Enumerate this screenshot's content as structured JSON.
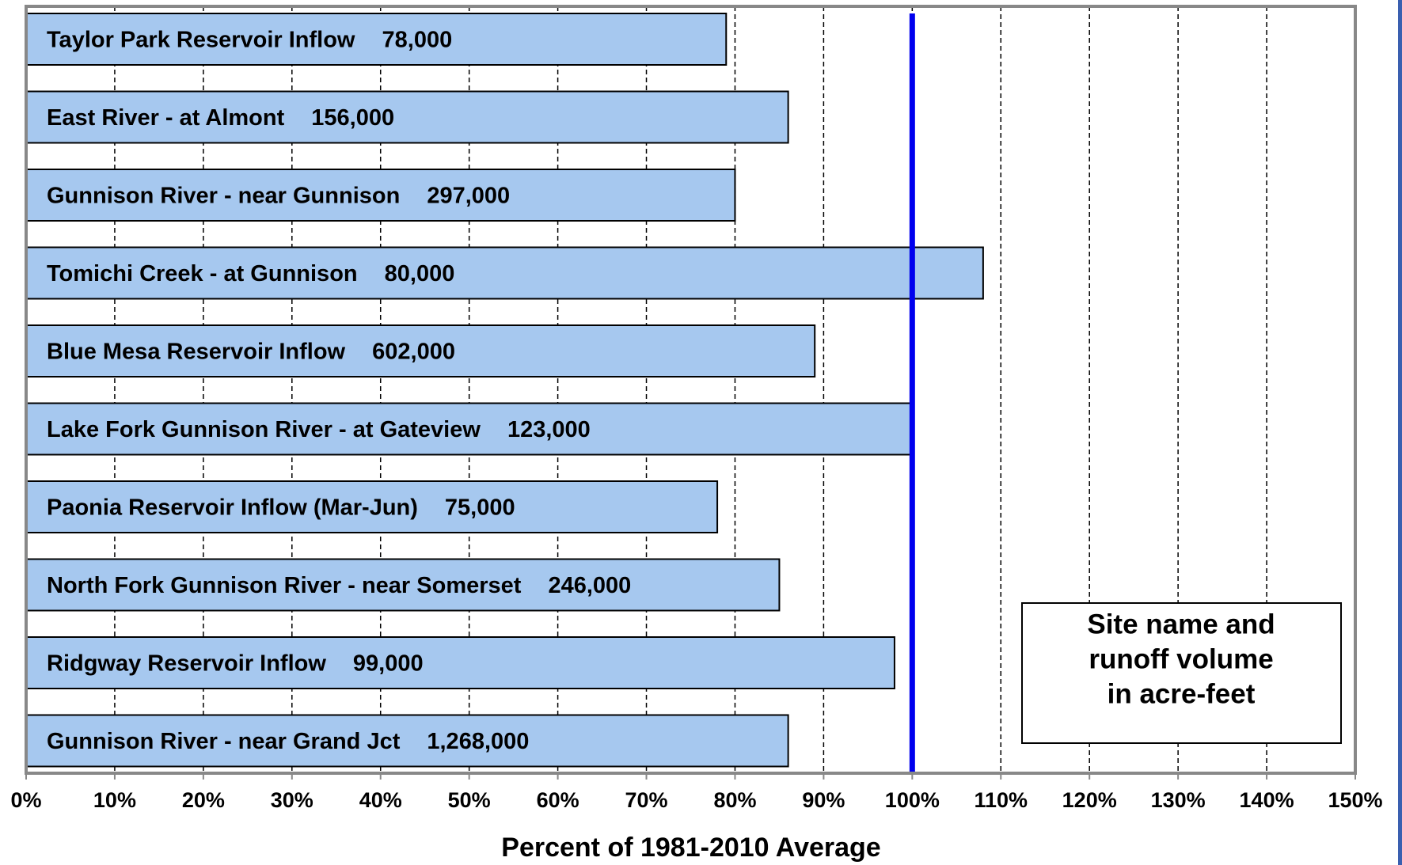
{
  "chart_data": {
    "type": "barh",
    "categories": [
      "Taylor Park Reservoir Inflow",
      "East River - at Almont",
      "Gunnison River - near Gunnison",
      "Tomichi Creek - at Gunnison",
      "Blue Mesa Reservoir Inflow",
      "Lake Fork Gunnison River - at Gateview",
      "Paonia Reservoir Inflow (Mar-Jun)",
      "North Fork Gunnison River - near Somerset",
      "Ridgway Reservoir Inflow",
      "Gunnison River  -  near Grand Jct"
    ],
    "volume_labels": [
      "78,000",
      "156,000",
      "297,000",
      "80,000",
      "602,000",
      "123,000",
      "75,000",
      "246,000",
      "99,000",
      "1,268,000"
    ],
    "values": [
      79,
      86,
      80,
      108,
      89,
      100,
      78,
      85,
      98,
      86
    ],
    "color": "#a6c8ef",
    "xlim": [
      0,
      150
    ],
    "xticks": [
      {
        "value": 0,
        "label": "0%"
      },
      {
        "value": 10,
        "label": "10%"
      },
      {
        "value": 20,
        "label": "20%"
      },
      {
        "value": 30,
        "label": "30%"
      },
      {
        "value": 40,
        "label": "40%"
      },
      {
        "value": 50,
        "label": "50%"
      },
      {
        "value": 60,
        "label": "60%"
      },
      {
        "value": 70,
        "label": "70%"
      },
      {
        "value": 80,
        "label": "80%"
      },
      {
        "value": 90,
        "label": "90%"
      },
      {
        "value": 100,
        "label": "100%"
      },
      {
        "value": 110,
        "label": "110%"
      },
      {
        "value": 120,
        "label": "120%"
      },
      {
        "value": 130,
        "label": "130%"
      },
      {
        "value": 140,
        "label": "140%"
      },
      {
        "value": 150,
        "label": "150%"
      }
    ],
    "grid": true,
    "reference_line": {
      "value": 100,
      "color": "#0000ee"
    },
    "xlabel": "Percent of 1981-2010 Average",
    "annotation": [
      "Site name and",
      "runoff volume",
      "in acre-feet"
    ]
  }
}
